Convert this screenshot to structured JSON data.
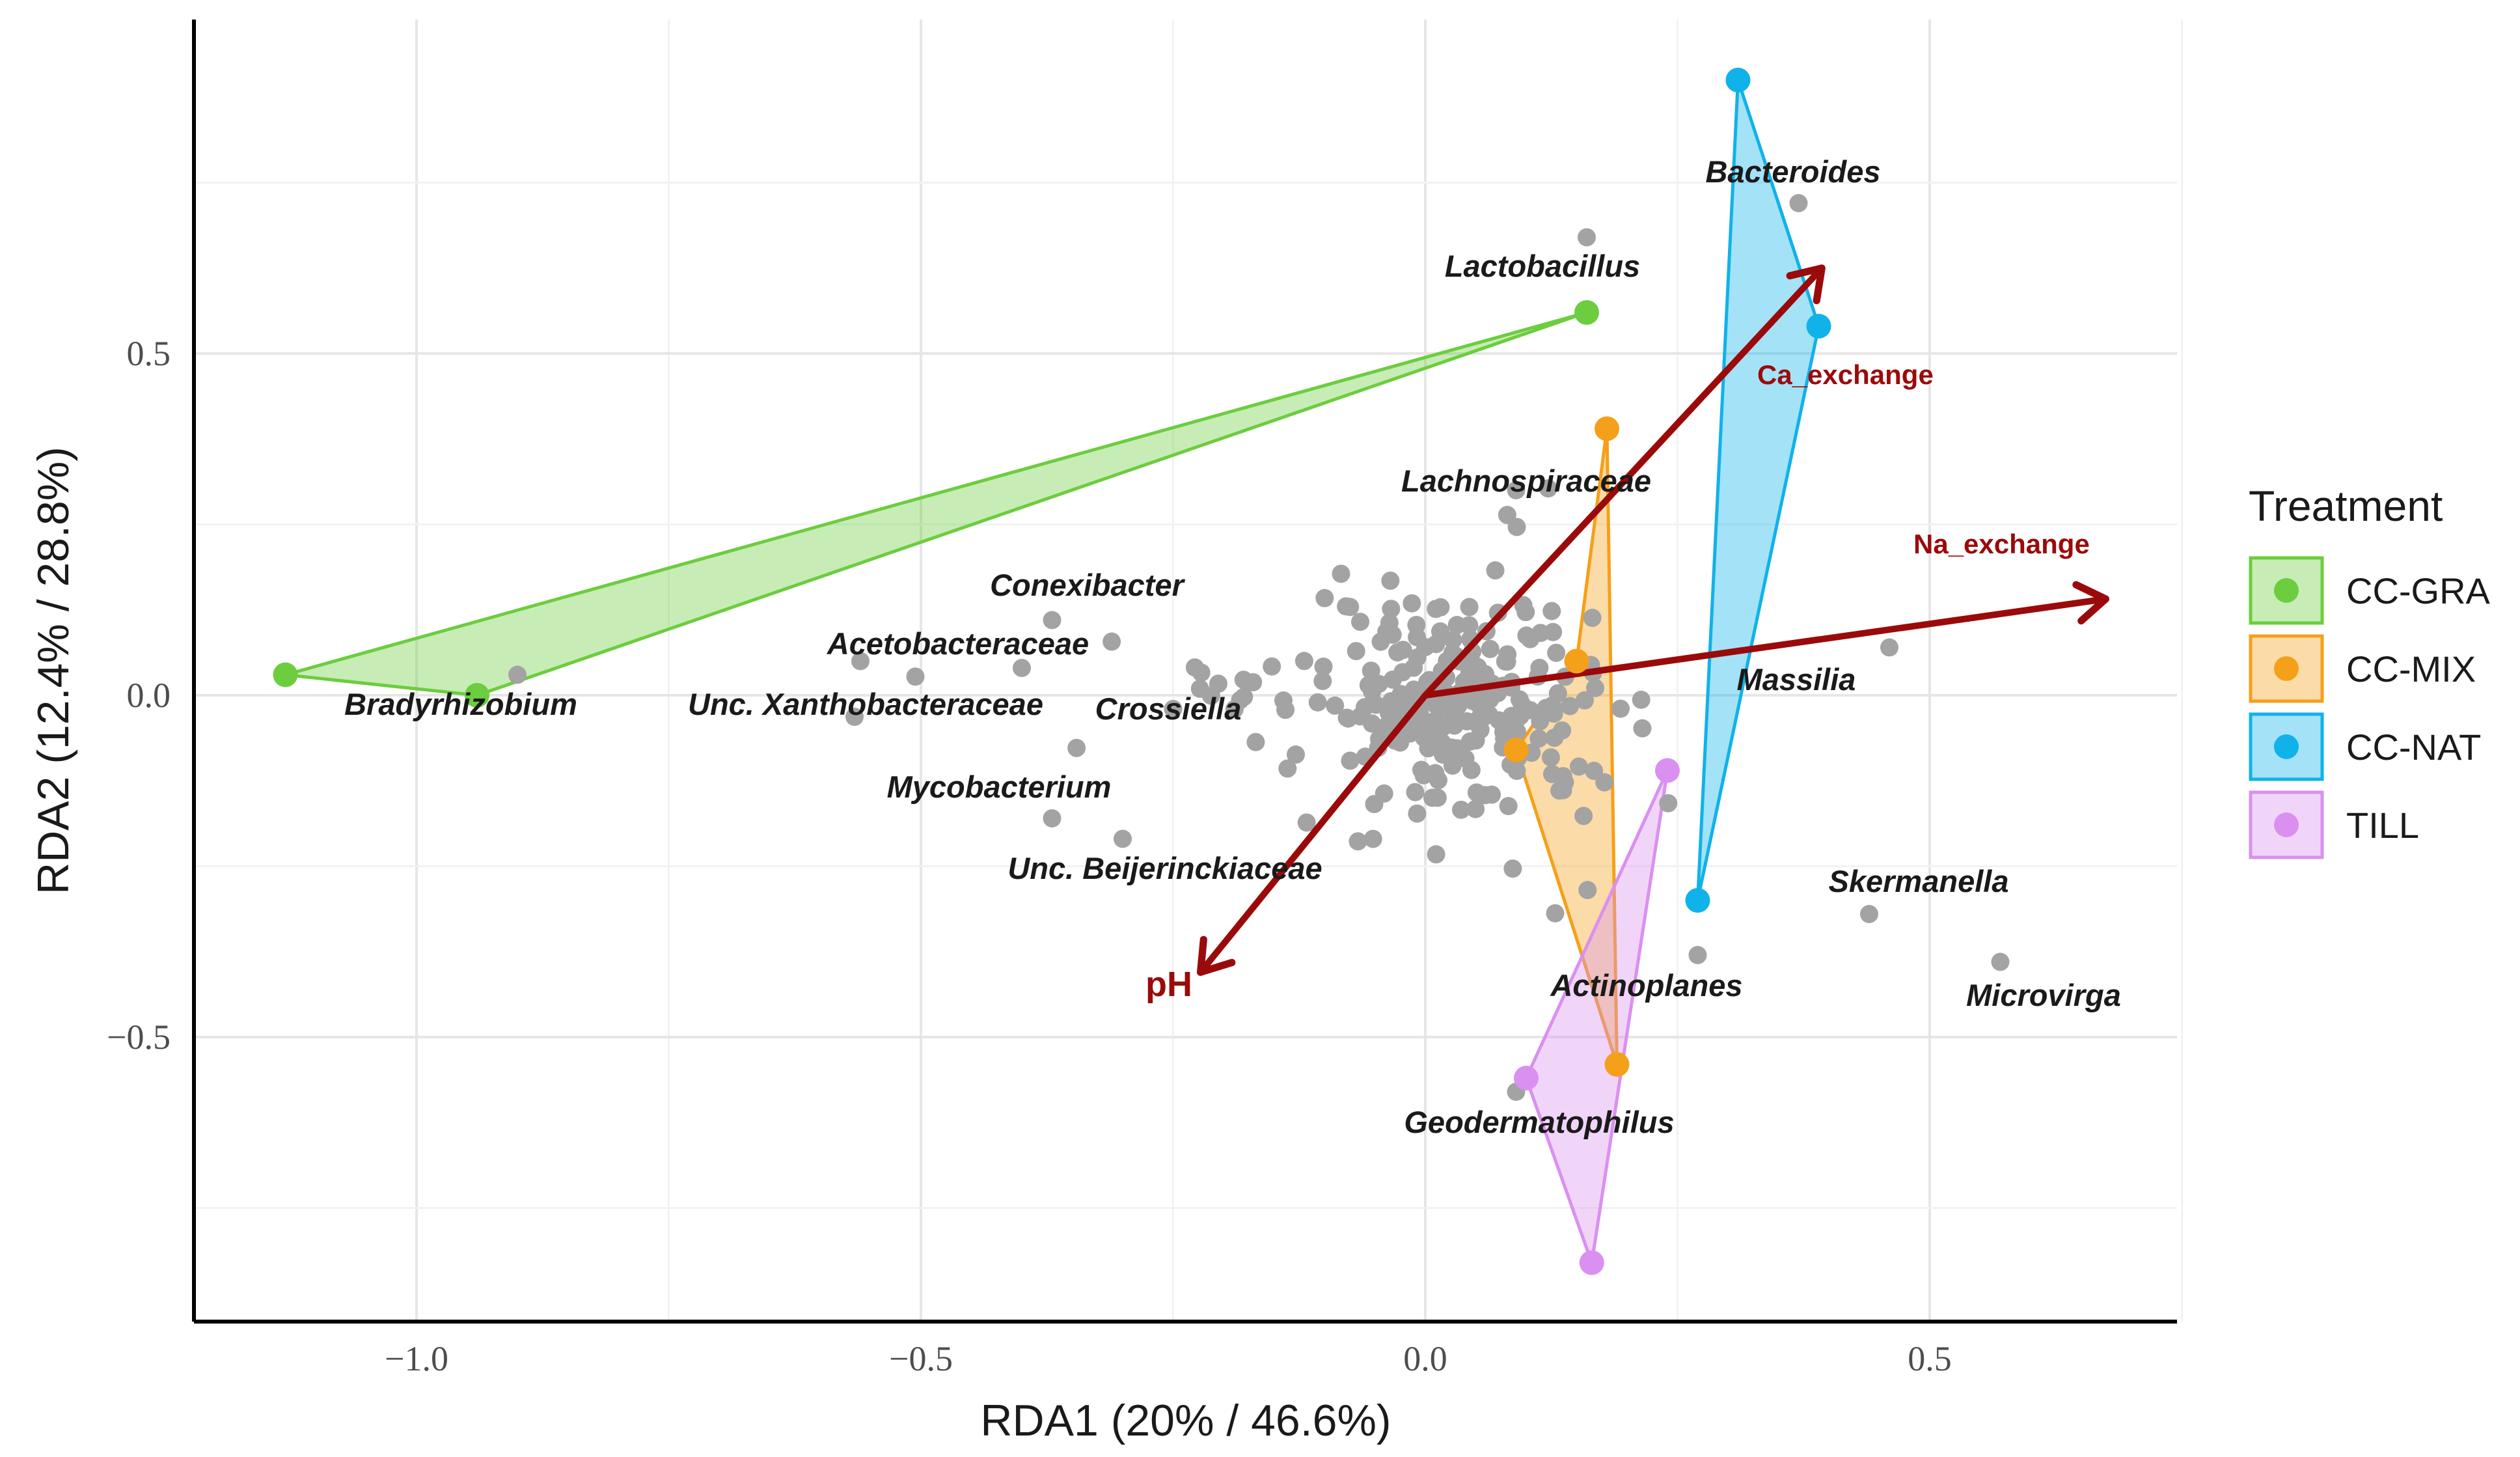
{
  "chart_data": {
    "type": "scatter",
    "title": "",
    "xlabel": "RDA1 (20% / 46.6%)",
    "ylabel": "RDA2 (12.4% / 28.8%)",
    "xlim": [
      -1.22,
      0.74
    ],
    "ylim": [
      -0.92,
      0.98
    ],
    "x_ticks": [
      -1.0,
      -0.5,
      0.0,
      0.5
    ],
    "x_tick_labels": [
      "−1.0",
      "−0.5",
      "0.0",
      "0.5"
    ],
    "y_ticks": [
      -0.5,
      0.0,
      0.5
    ],
    "y_tick_labels": [
      "−0.5",
      "0.0",
      "0.5"
    ],
    "grid": true,
    "legend": {
      "title": "Treatment",
      "placement": "right",
      "entries": [
        "CC-GRA",
        "CC-MIX",
        "CC-NAT",
        "TILL"
      ]
    },
    "colors": {
      "CC-GRA": "#6ccd3e",
      "CC-MIX": "#f5a01a",
      "CC-NAT": "#10b2ea",
      "TILL": "#da90f0",
      "taxa": "#a3a3a3",
      "arrow": "#9b0a0a"
    },
    "treatments": [
      {
        "name": "CC-GRA",
        "points": [
          [
            -1.13,
            0.03
          ],
          [
            -0.94,
            0.0
          ],
          [
            0.16,
            0.56
          ]
        ]
      },
      {
        "name": "CC-MIX",
        "points": [
          [
            0.18,
            0.39
          ],
          [
            0.19,
            -0.54
          ],
          [
            0.09,
            -0.08
          ],
          [
            0.15,
            0.05
          ]
        ]
      },
      {
        "name": "CC-NAT",
        "points": [
          [
            0.31,
            0.9
          ],
          [
            0.39,
            0.54
          ],
          [
            0.27,
            -0.3
          ]
        ]
      },
      {
        "name": "TILL",
        "points": [
          [
            0.24,
            -0.11
          ],
          [
            0.1,
            -0.56
          ],
          [
            0.165,
            -0.83
          ]
        ]
      }
    ],
    "arrows": [
      {
        "name": "Ca_exchange",
        "x": 0.39,
        "y": 0.62
      },
      {
        "name": "Na_exchange",
        "x": 0.67,
        "y": 0.14
      },
      {
        "name": "pH",
        "x": -0.22,
        "y": -0.4
      }
    ],
    "labeled_taxa": [
      {
        "name": "Lactobacillus",
        "x": 0.16,
        "y": 0.67
      },
      {
        "name": "Bacteroides",
        "x": 0.37,
        "y": 0.72
      },
      {
        "name": "Lachnospiraceae",
        "x": 0.09,
        "y": 0.3
      },
      {
        "name": "Conexibacter",
        "x": -0.37,
        "y": 0.11
      },
      {
        "name": "Acetobacteraceae",
        "x": -0.56,
        "y": 0.05
      },
      {
        "name": "Bradyrhizobium",
        "x": -0.9,
        "y": 0.03
      },
      {
        "name": "Unc. Xanthobacteraceae",
        "x": -0.4,
        "y": 0.04
      },
      {
        "name": "Crossiella",
        "x": -0.25,
        "y": -0.02
      },
      {
        "name": "Mycobacterium",
        "x": -0.37,
        "y": -0.18
      },
      {
        "name": "Unc. Beijerinckiaceae",
        "x": -0.3,
        "y": -0.21
      },
      {
        "name": "Massilia",
        "x": 0.46,
        "y": 0.07
      },
      {
        "name": "Skermanella",
        "x": 0.44,
        "y": -0.32
      },
      {
        "name": "Microvirga",
        "x": 0.57,
        "y": -0.39
      },
      {
        "name": "Actinoplanes",
        "x": 0.27,
        "y": -0.38
      },
      {
        "name": "Geodermatophilus",
        "x": 0.09,
        "y": -0.58
      }
    ],
    "other_taxa_count": 260
  },
  "labels": {
    "legend_title": "Treatment",
    "legend_items": [
      "CC-GRA",
      "CC-MIX",
      "CC-NAT",
      "TILL"
    ]
  }
}
